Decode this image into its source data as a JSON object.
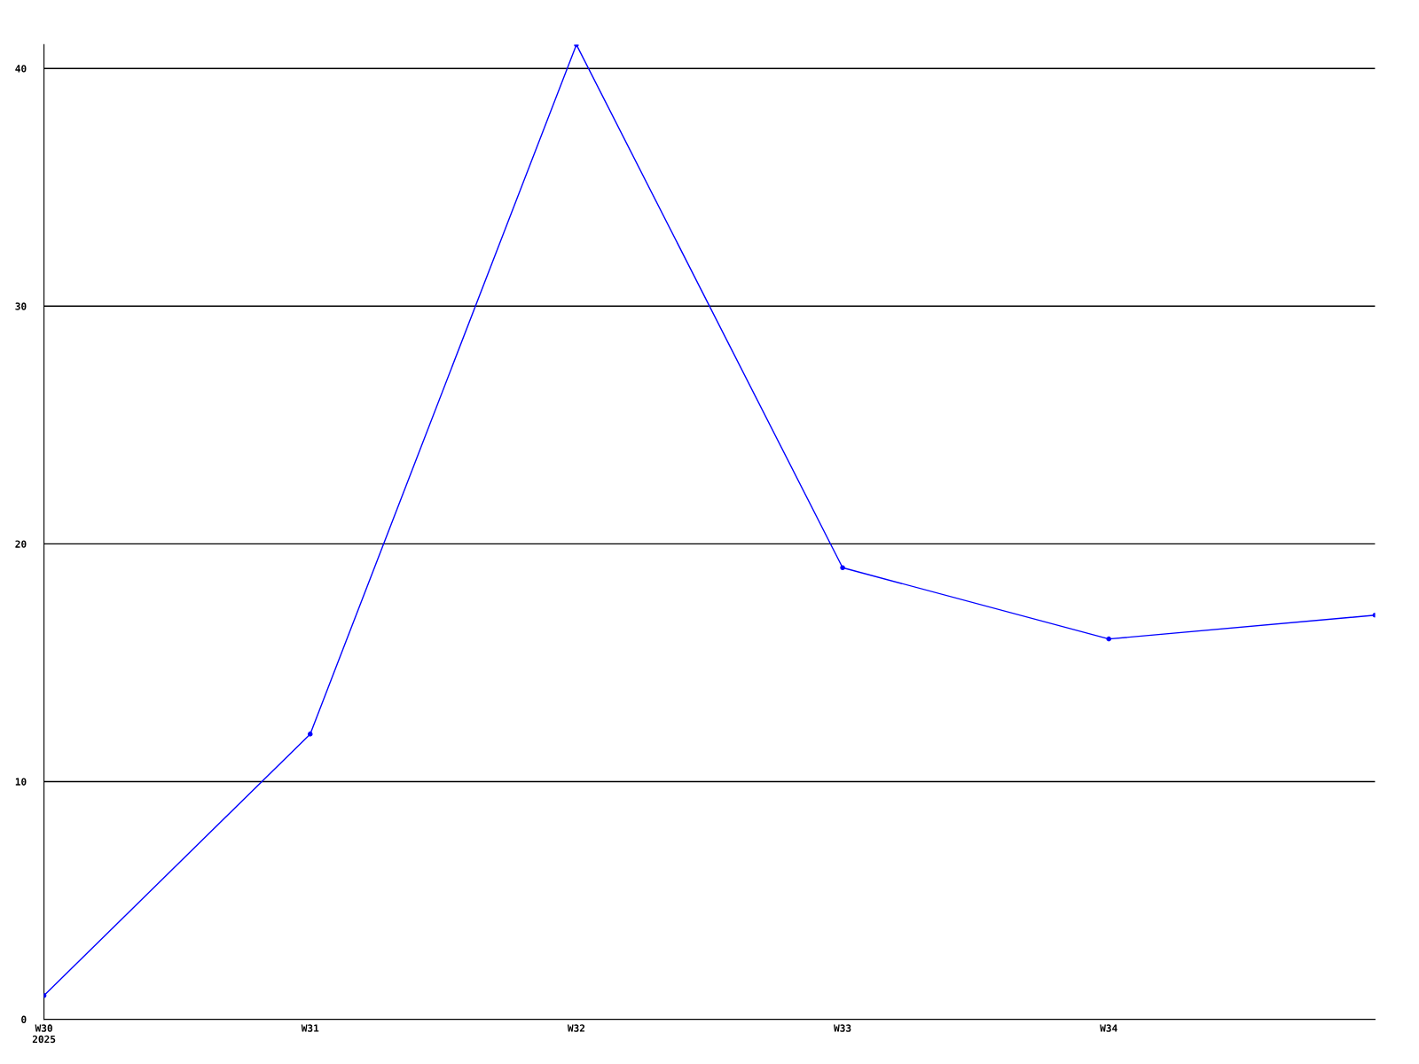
{
  "chart_data": {
    "type": "line",
    "categories": [
      "W30\n2025",
      "W31",
      "W32",
      "W33",
      "W34",
      null
    ],
    "series": [
      {
        "color": "#0000ff",
        "values": [
          1,
          12,
          41,
          19,
          16,
          17
        ]
      }
    ],
    "ylim": [
      0,
      41
    ],
    "yticks": [
      0,
      10,
      20,
      30,
      40
    ],
    "grid": "y",
    "marker": "circle",
    "line_style": "solid",
    "legend": false
  }
}
